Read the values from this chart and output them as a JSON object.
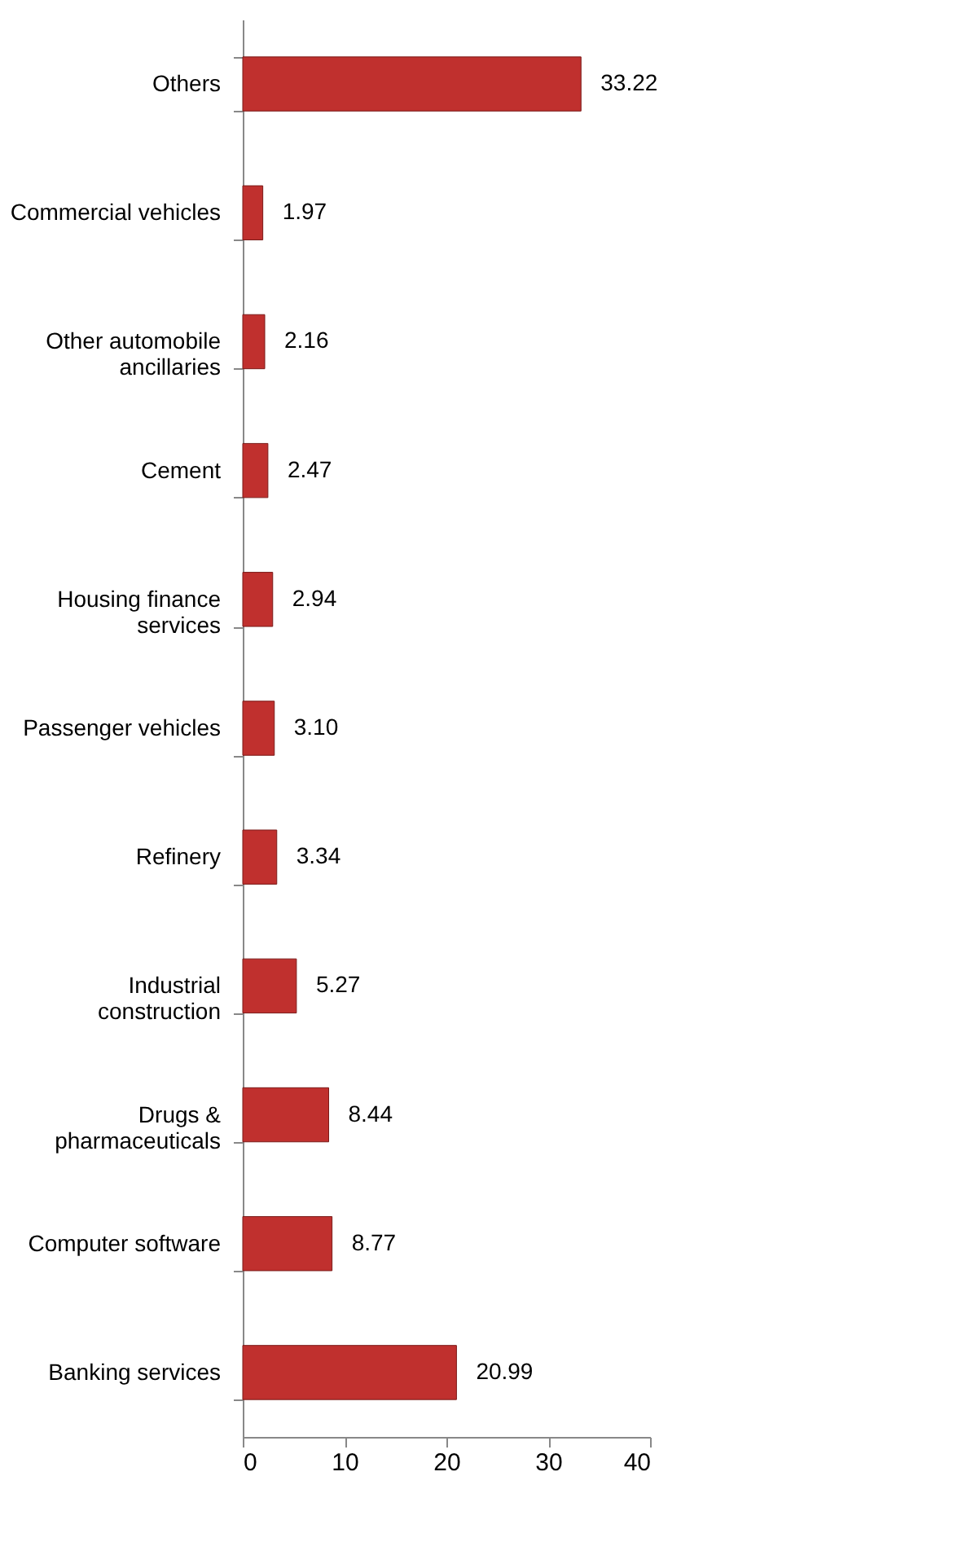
{
  "chart_data": {
    "type": "bar",
    "orientation": "horizontal",
    "categories": [
      "Others",
      "Commercial vehicles",
      "Other automobile ancillaries",
      "Cement",
      "Housing finance services",
      "Passenger vehicles",
      "Refinery",
      "Industrial construction",
      "Drugs & pharmaceuticals",
      "Computer software",
      "Banking services"
    ],
    "values": [
      33.22,
      1.97,
      2.16,
      2.47,
      2.94,
      3.1,
      3.34,
      5.27,
      8.44,
      8.77,
      20.99
    ],
    "value_labels": [
      "33.22",
      "1.97",
      "2.16",
      "2.47",
      "2.94",
      "3.10",
      "3.34",
      "5.27",
      "8.44",
      "8.77",
      "20.99"
    ],
    "color": "#c0302e",
    "xlim": [
      0,
      40
    ],
    "xticks": [
      0,
      10,
      20,
      30,
      40
    ],
    "grid": false
  }
}
